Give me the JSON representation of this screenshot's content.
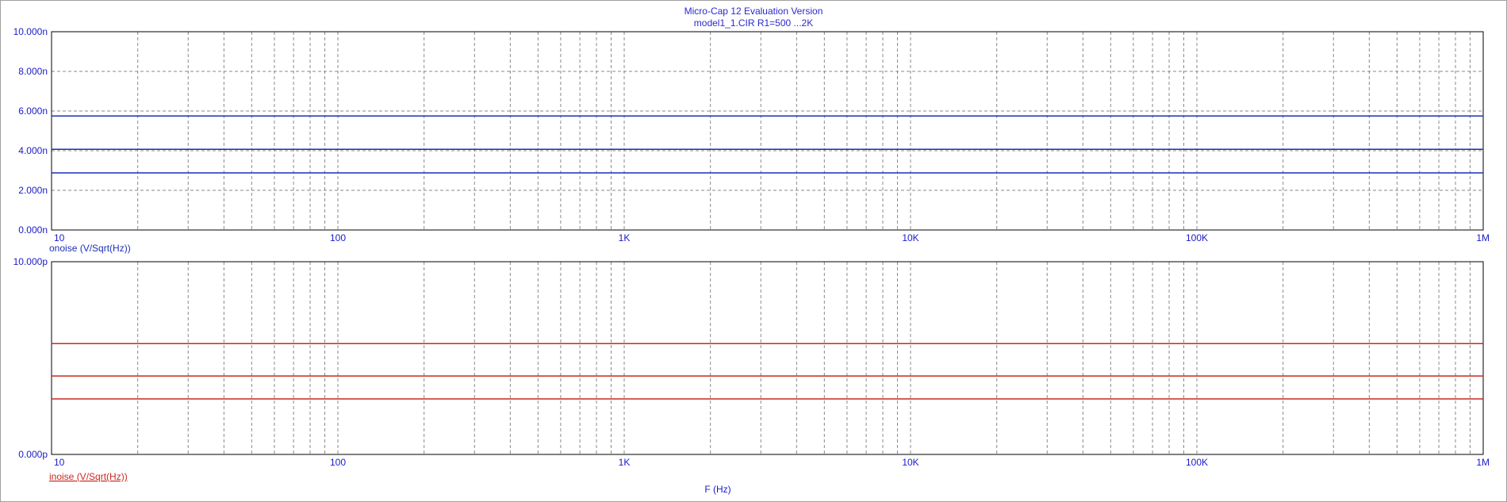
{
  "app": {
    "title_line1": "Micro-Cap 12 Evaluation Version",
    "title_line2": "model1_1.CIR R1=500 ...2K"
  },
  "colors": {
    "top_series": "#1c2fb8",
    "bottom_series": "#c8281e",
    "tick_text": "#1a1acc",
    "grid": "#8a8a8a",
    "frame": "#000000"
  },
  "chart_data": [
    {
      "type": "line",
      "title": "",
      "xlabel": "F (Hz)",
      "ylabel": "onoise (V/Sqrt(Hz))",
      "xscale": "log",
      "xlim": [
        10,
        1000000
      ],
      "x_tick_labels": [
        "10",
        "100",
        "1K",
        "10K",
        "100K",
        "1M"
      ],
      "x_tick_values": [
        10,
        100,
        1000,
        10000,
        100000,
        1000000
      ],
      "ylim": [
        0,
        10
      ],
      "y_unit": "n",
      "y_tick_values": [
        0,
        2,
        4,
        6,
        8,
        10
      ],
      "y_tick_labels": [
        "0.000n",
        "2.000n",
        "4.000n",
        "6.000n",
        "8.000n",
        "10.000n"
      ],
      "grid": true,
      "series": [
        {
          "x": [
            10,
            1000000
          ],
          "values": [
            5.75,
            5.75
          ]
        },
        {
          "x": [
            10,
            1000000
          ],
          "values": [
            4.07,
            4.07
          ]
        },
        {
          "x": [
            10,
            1000000
          ],
          "values": [
            2.88,
            2.88
          ]
        }
      ]
    },
    {
      "type": "line",
      "title": "",
      "xlabel": "F (Hz)",
      "ylabel": "inoise (V/Sqrt(Hz))",
      "xscale": "log",
      "xlim": [
        10,
        1000000
      ],
      "x_tick_labels": [
        "10",
        "100",
        "1K",
        "10K",
        "100K",
        "1M"
      ],
      "x_tick_values": [
        10,
        100,
        1000,
        10000,
        100000,
        1000000
      ],
      "ylim": [
        0,
        10
      ],
      "y_unit": "p",
      "y_tick_values": [
        0,
        10
      ],
      "y_tick_labels": [
        "0.000p",
        "10.000p"
      ],
      "grid": true,
      "series": [
        {
          "x": [
            10,
            1000000
          ],
          "values": [
            5.75,
            5.75
          ]
        },
        {
          "x": [
            10,
            1000000
          ],
          "values": [
            4.07,
            4.07
          ]
        },
        {
          "x": [
            10,
            1000000
          ],
          "values": [
            2.88,
            2.88
          ]
        }
      ]
    }
  ]
}
